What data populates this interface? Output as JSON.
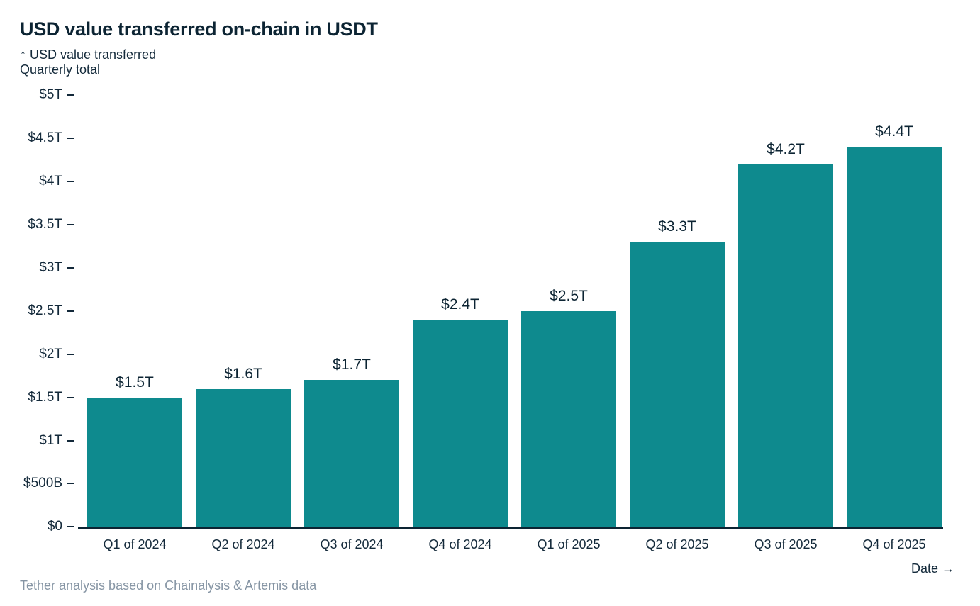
{
  "header": {
    "title": "USD value transferred on-chain in USDT",
    "y_axis_annotation": "↑ USD value transferred",
    "y_axis_subtitle": "Quarterly total"
  },
  "footer": {
    "source_note": "Tether analysis based on Chainalysis & Artemis data",
    "x_axis_title": "Date →"
  },
  "colors": {
    "bar": "#0e8a8e",
    "text_dark": "#0c2433",
    "axis_text": "#13293a",
    "footer_text": "#8695a4",
    "background": "#ffffff"
  },
  "chart_data": {
    "type": "bar",
    "title": "USD value transferred on-chain in USDT",
    "subtitle": "Quarterly total",
    "xlabel": "Date",
    "ylabel": "USD value transferred",
    "unit": "USD (T = trillion, B = billion)",
    "categories": [
      "Q1 of 2024",
      "Q2 of 2024",
      "Q3 of 2024",
      "Q4 of 2024",
      "Q1 of 2025",
      "Q2 of 2025",
      "Q3 of 2025",
      "Q4 of 2025"
    ],
    "values": [
      1.5,
      1.6,
      1.7,
      2.4,
      2.5,
      3.3,
      4.2,
      4.4
    ],
    "value_labels": [
      "$1.5T",
      "$1.6T",
      "$1.7T",
      "$2.4T",
      "$2.5T",
      "$3.3T",
      "$4.2T",
      "$4.4T"
    ],
    "ylim": [
      0,
      5
    ],
    "yticks": [
      {
        "value": 0,
        "label": "$0"
      },
      {
        "value": 0.5,
        "label": "$500B"
      },
      {
        "value": 1,
        "label": "$1T"
      },
      {
        "value": 1.5,
        "label": "$1.5T"
      },
      {
        "value": 2,
        "label": "$2T"
      },
      {
        "value": 2.5,
        "label": "$2.5T"
      },
      {
        "value": 3,
        "label": "$3T"
      },
      {
        "value": 3.5,
        "label": "$3.5T"
      },
      {
        "value": 4,
        "label": "$4T"
      },
      {
        "value": 4.5,
        "label": "$4.5T"
      },
      {
        "value": 5,
        "label": "$5T"
      }
    ],
    "grid": false,
    "legend": false,
    "bar_color": "#0e8a8e",
    "source": "Tether analysis based on Chainalysis & Artemis data"
  }
}
